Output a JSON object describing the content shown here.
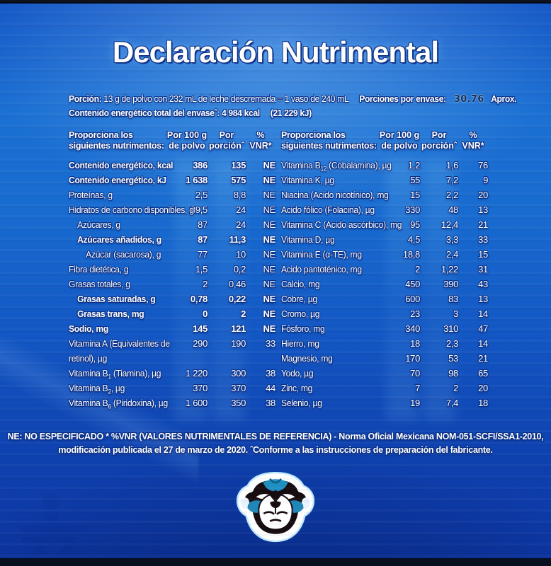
{
  "title": "Declaración Nutrimental",
  "serving": {
    "portion_label": "Porción:",
    "portion_text": " 13 g de polvo con 232 mL de leche descremada = 1 vaso de 240 mL",
    "servings_label": "Porciones por envase:",
    "servings_value": "30.76",
    "servings_approx": "Aprox.",
    "energy_label": "Contenido energético total del envaseˆ:",
    "energy_kcal": " 4 984 kcal",
    "energy_kj": "(21 229 kJ)"
  },
  "table": {
    "headers": {
      "nutrients": "Proporciona los\nsiguientes nutrimentos:",
      "per100": "Por 100 g\nde polvo",
      "portion": "Por\nporciónˆ",
      "vnr": "%\nVNR*"
    },
    "left_rows": [
      {
        "label": "Contenido energético, kcal",
        "per100": "386",
        "portion": "135",
        "vnr": "NE",
        "indent": 0,
        "bold": true
      },
      {
        "label": "Contenido energético, kJ",
        "per100": "1 638",
        "portion": "575",
        "vnr": "NE",
        "indent": 0,
        "bold": true
      },
      {
        "label": "Proteínas, g",
        "per100": "2,5",
        "portion": "8,8",
        "vnr": "NE",
        "indent": 0,
        "bold": false
      },
      {
        "label": "Hidratos de carbono disponibles, g",
        "per100": "89,5",
        "portion": "24",
        "vnr": "NE",
        "indent": 0,
        "bold": false
      },
      {
        "label": "Azúcares, g",
        "per100": "87",
        "portion": "24",
        "vnr": "NE",
        "indent": 1,
        "bold": false
      },
      {
        "label": "Azúcares añadidos, g",
        "per100": "87",
        "portion": "11,3",
        "vnr": "NE",
        "indent": 1,
        "bold": true
      },
      {
        "label": "Azúcar (sacarosa), g",
        "per100": "77",
        "portion": "10",
        "vnr": "NE",
        "indent": 2,
        "bold": false
      },
      {
        "label": "Fibra dietética, g",
        "per100": "1,5",
        "portion": "0,2",
        "vnr": "NE",
        "indent": 0,
        "bold": false
      },
      {
        "label": "Grasas totales, g",
        "per100": "2",
        "portion": "0,46",
        "vnr": "NE",
        "indent": 0,
        "bold": false
      },
      {
        "label": "Grasas saturadas, g",
        "per100": "0,78",
        "portion": "0,22",
        "vnr": "NE",
        "indent": 1,
        "bold": true
      },
      {
        "label": "Grasas trans, mg",
        "per100": "0",
        "portion": "2",
        "vnr": "NE",
        "indent": 1,
        "bold": true
      },
      {
        "label": "Sodio, mg",
        "per100": "145",
        "portion": "121",
        "vnr": "NE",
        "indent": 0,
        "bold": true
      },
      {
        "label": "Vitamina A (Equivalentes de\nretinol), µg",
        "per100": "290",
        "portion": "190",
        "vnr": "33",
        "indent": 0,
        "bold": false
      },
      {
        "label": "Vitamina B1 (Tiamina), µg",
        "per100": "1 220",
        "portion": "300",
        "vnr": "38",
        "indent": 0,
        "bold": false
      },
      {
        "label": "Vitamina B2, µg",
        "per100": "370",
        "portion": "370",
        "vnr": "44",
        "indent": 0,
        "bold": false
      },
      {
        "label": "Vitamina B6 (Piridoxina), µg",
        "per100": "1 600",
        "portion": "350",
        "vnr": "38",
        "indent": 0,
        "bold": false
      }
    ],
    "right_rows": [
      {
        "label": "Vitamina B12 (Cobalamina), µg",
        "per100": "1,2",
        "portion": "1,6",
        "vnr": "76",
        "indent": 0,
        "bold": false
      },
      {
        "label": "Vitamina K, µg",
        "per100": "55",
        "portion": "7,2",
        "vnr": "9",
        "indent": 0,
        "bold": false
      },
      {
        "label": "Niacina (Acido nicotínico), mg",
        "per100": "15",
        "portion": "2,2",
        "vnr": "20",
        "indent": 0,
        "bold": false
      },
      {
        "label": "Acido fólico (Folacina), µg",
        "per100": "330",
        "portion": "48",
        "vnr": "13",
        "indent": 0,
        "bold": false
      },
      {
        "label": "Vitamina C (Acido ascórbico), mg",
        "per100": "95",
        "portion": "12,4",
        "vnr": "21",
        "indent": 0,
        "bold": false
      },
      {
        "label": "Vitamina D, µg",
        "per100": "4,5",
        "portion": "3,3",
        "vnr": "33",
        "indent": 0,
        "bold": false
      },
      {
        "label": "Vitamina E (α-TE), mg",
        "per100": "18,8",
        "portion": "2,4",
        "vnr": "15",
        "indent": 0,
        "bold": false
      },
      {
        "label": "Acido pantoténico, mg",
        "per100": "2",
        "portion": "1,22",
        "vnr": "31",
        "indent": 0,
        "bold": false
      },
      {
        "label": "Calcio, mg",
        "per100": "450",
        "portion": "390",
        "vnr": "43",
        "indent": 0,
        "bold": false
      },
      {
        "label": "Cobre, µg",
        "per100": "600",
        "portion": "83",
        "vnr": "13",
        "indent": 0,
        "bold": false
      },
      {
        "label": "Cromo, µg",
        "per100": "23",
        "portion": "3",
        "vnr": "14",
        "indent": 0,
        "bold": false
      },
      {
        "label": "Fósforo, mg",
        "per100": "340",
        "portion": "310",
        "vnr": "47",
        "indent": 0,
        "bold": false
      },
      {
        "label": "Hierro, mg",
        "per100": "18",
        "portion": "2,3",
        "vnr": "14",
        "indent": 0,
        "bold": false
      },
      {
        "label": "Magnesio, mg",
        "per100": "170",
        "portion": "53",
        "vnr": "21",
        "indent": 0,
        "bold": false
      },
      {
        "label": "Yodo, µg",
        "per100": "70",
        "portion": "98",
        "vnr": "65",
        "indent": 0,
        "bold": false
      },
      {
        "label": "Zinc, mg",
        "per100": "7",
        "portion": "2",
        "vnr": "20",
        "indent": 0,
        "bold": false
      },
      {
        "label": "Selenio, µg",
        "per100": "19",
        "portion": "7,4",
        "vnr": "18",
        "indent": 0,
        "bold": false
      }
    ]
  },
  "footnote": "NE: NO ESPECIFICADO   * %VNR (VALORES NUTRIMENTALES DE REFERENCIA) - Norma Oficial Mexicana NOM-051-SCFI/SSA1-2010,\nmodificación publicada el 27 de marzo de 2020. ˆConforme a las instrucciones de preparación del fabricante.",
  "mascot": {
    "name": "monkey-mascot"
  },
  "colors": {
    "background_blue": "#1563cd",
    "deep_blue": "#0c35a0",
    "text_white": "#ffffff",
    "outline_navy": "#0a2f85",
    "batch_number": "#1e2a4e",
    "mascot_blue": "#1f8fc2",
    "mascot_dark": "#170c10"
  }
}
